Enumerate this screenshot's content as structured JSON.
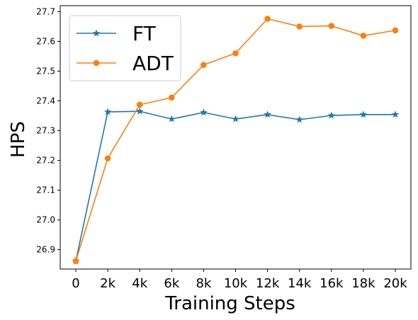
{
  "chart_data": {
    "type": "line",
    "xlabel": "Training Steps",
    "ylabel": "HPS",
    "categories": [
      "0",
      "2k",
      "4k",
      "6k",
      "8k",
      "10k",
      "12k",
      "14k",
      "16k",
      "18k",
      "20k"
    ],
    "ylim": [
      26.835,
      27.72
    ],
    "yticks": [
      "26.9",
      "27.0",
      "27.1",
      "27.2",
      "27.3",
      "27.4",
      "27.5",
      "27.6",
      "27.7"
    ],
    "legend_position": "top-left",
    "series": [
      {
        "name": "FT",
        "color": "#1f77b4",
        "marker": "star",
        "values": [
          26.862,
          27.363,
          27.365,
          27.339,
          27.361,
          27.339,
          27.354,
          27.337,
          27.351,
          27.354,
          27.354
        ]
      },
      {
        "name": "ADT",
        "color": "#ff7f0e",
        "marker": "circle",
        "values": [
          26.862,
          27.207,
          27.387,
          27.411,
          27.521,
          27.56,
          27.676,
          27.65,
          27.652,
          27.619,
          27.637
        ]
      }
    ]
  }
}
